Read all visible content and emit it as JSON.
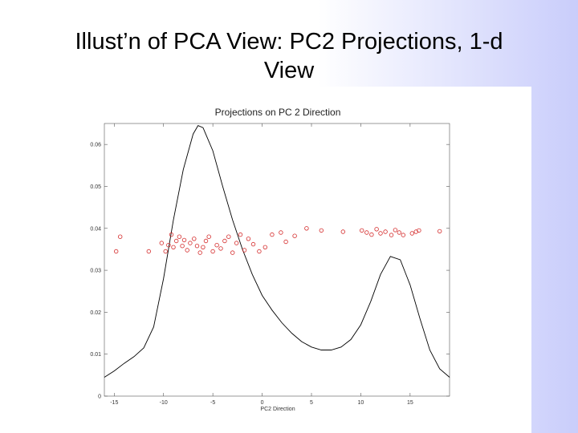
{
  "slide": {
    "title_line1": "Illust’n of PCA View:    PC2 Projections, 1-d",
    "title_line2": "View"
  },
  "chart_data": {
    "type": "line",
    "title": "Projections on PC 2 Direction",
    "xlabel": "PC2 Direction",
    "ylabel": "",
    "xlim": [
      -16,
      19
    ],
    "ylim": [
      0,
      0.065
    ],
    "x_ticks": [
      -15,
      -10,
      -5,
      0,
      5,
      10,
      15
    ],
    "x_tick_labels": [
      "-15",
      "-10",
      "-5",
      "0",
      "5",
      "10",
      "15"
    ],
    "y_ticks": [
      0,
      0.01,
      0.02,
      0.03,
      0.04,
      0.05,
      0.06
    ],
    "y_tick_labels": [
      "0",
      "0.01",
      "0.02",
      "0.03",
      "0.04",
      "0.05",
      "0.06"
    ],
    "grid": false,
    "colors": {
      "density": "#000000",
      "points": "#d42a2a"
    },
    "series": [
      {
        "type": "line",
        "x": [
          -16,
          -15,
          -14,
          -13,
          -12,
          -11,
          -10,
          -9,
          -8,
          -7,
          -6.5,
          -6,
          -5,
          -4,
          -3,
          -2,
          -1,
          0,
          1,
          2,
          3,
          4,
          5,
          6,
          7,
          8,
          9,
          10,
          11,
          12,
          13,
          14,
          15,
          16,
          17,
          18,
          19
        ],
        "values": [
          0.0045,
          0.006,
          0.0078,
          0.0094,
          0.0115,
          0.0165,
          0.028,
          0.042,
          0.054,
          0.0625,
          0.0645,
          0.064,
          0.0585,
          0.05,
          0.042,
          0.035,
          0.029,
          0.024,
          0.0205,
          0.0175,
          0.015,
          0.013,
          0.0117,
          0.011,
          0.011,
          0.0117,
          0.0135,
          0.017,
          0.0225,
          0.029,
          0.0333,
          0.0325,
          0.0265,
          0.0185,
          0.011,
          0.0065,
          0.0045
        ]
      },
      {
        "type": "scatter",
        "x": [
          -14.8,
          -14.4,
          -11.5,
          -10.2,
          -9.8,
          -9.5,
          -9.2,
          -9.0,
          -8.7,
          -8.4,
          -8.1,
          -7.9,
          -7.6,
          -7.3,
          -6.9,
          -6.6,
          -6.3,
          -6.0,
          -5.7,
          -5.4,
          -5.0,
          -4.6,
          -4.2,
          -3.8,
          -3.4,
          -3.0,
          -2.6,
          -2.2,
          -1.8,
          -1.4,
          -0.9,
          -0.3,
          0.3,
          1.0,
          1.9,
          2.4,
          3.3,
          4.5,
          6.0,
          8.2,
          10.1,
          10.6,
          11.1,
          11.6,
          12.0,
          12.5,
          13.1,
          13.5,
          13.9,
          14.3,
          15.2,
          15.6,
          15.9,
          18.0
        ],
        "values": [
          0.0345,
          0.038,
          0.0345,
          0.0365,
          0.0345,
          0.036,
          0.0385,
          0.0355,
          0.037,
          0.038,
          0.0358,
          0.0372,
          0.0348,
          0.0365,
          0.0375,
          0.0358,
          0.0342,
          0.0355,
          0.037,
          0.038,
          0.0345,
          0.036,
          0.0352,
          0.037,
          0.038,
          0.0342,
          0.0365,
          0.0385,
          0.0348,
          0.0375,
          0.0362,
          0.0345,
          0.0355,
          0.0385,
          0.039,
          0.0368,
          0.0382,
          0.04,
          0.0395,
          0.0392,
          0.0395,
          0.039,
          0.0385,
          0.0398,
          0.0388,
          0.0392,
          0.0384,
          0.0396,
          0.039,
          0.0384,
          0.0388,
          0.0392,
          0.0395,
          0.0393
        ]
      }
    ]
  }
}
